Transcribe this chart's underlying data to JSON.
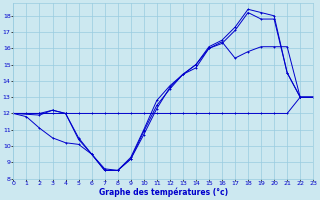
{
  "title": "Graphe des températures (°c)",
  "bg_color": "#cce8f0",
  "grid_color": "#99cce0",
  "line_color": "#0000cc",
  "xlim": [
    0,
    23
  ],
  "ylim": [
    8,
    18.8
  ],
  "yticks": [
    8,
    9,
    10,
    11,
    12,
    13,
    14,
    15,
    16,
    17,
    18
  ],
  "xticks": [
    0,
    1,
    2,
    3,
    4,
    5,
    6,
    7,
    8,
    9,
    10,
    11,
    12,
    13,
    14,
    15,
    16,
    17,
    18,
    19,
    20,
    21,
    22,
    23
  ],
  "curve1_x": [
    0,
    1,
    2,
    3,
    4,
    5,
    6,
    7,
    8,
    9,
    10,
    11,
    12,
    13,
    14,
    15,
    16,
    17,
    18,
    19,
    20,
    21,
    22,
    23
  ],
  "curve1_y": [
    12,
    11.8,
    11.1,
    10.5,
    10.2,
    10.1,
    9.5,
    8.6,
    8.5,
    9.2,
    10.7,
    12.3,
    13.6,
    14.4,
    15.0,
    16.0,
    16.4,
    15.4,
    15.8,
    16.1,
    16.1,
    16.1,
    13,
    13
  ],
  "curve2_x": [
    0,
    1,
    2,
    3,
    4,
    5,
    6,
    7,
    8,
    9,
    10,
    11,
    12,
    13,
    14,
    15,
    16,
    17,
    18,
    19,
    20,
    21,
    22,
    23
  ],
  "curve2_y": [
    12,
    12,
    12,
    12,
    12,
    12,
    12,
    12,
    12,
    12,
    12,
    12,
    12,
    12,
    12,
    12,
    12,
    12,
    12,
    12,
    12,
    12,
    13,
    13
  ],
  "curve3_x": [
    0,
    2,
    3,
    4,
    5,
    6,
    7,
    8,
    9,
    10,
    11,
    12,
    13,
    14,
    15,
    16,
    17,
    18,
    19,
    20,
    21,
    22,
    23
  ],
  "curve3_y": [
    12,
    11.9,
    12.2,
    12.0,
    10.5,
    9.5,
    8.5,
    8.5,
    9.2,
    10.9,
    12.5,
    13.5,
    14.4,
    14.8,
    16.0,
    16.3,
    17.1,
    18.2,
    17.8,
    17.8,
    14.5,
    13.0,
    13.0
  ],
  "curve4_x": [
    0,
    2,
    3,
    4,
    5,
    6,
    7,
    8,
    9,
    10,
    11,
    12,
    13,
    14,
    15,
    16,
    17,
    18,
    19,
    20,
    21,
    22,
    23
  ],
  "curve4_y": [
    12,
    12,
    12.2,
    12.0,
    10.4,
    9.5,
    8.5,
    8.5,
    9.3,
    11.0,
    12.8,
    13.7,
    14.4,
    15.0,
    16.1,
    16.5,
    17.3,
    18.4,
    18.2,
    18.0,
    14.5,
    13.0,
    13.0
  ]
}
